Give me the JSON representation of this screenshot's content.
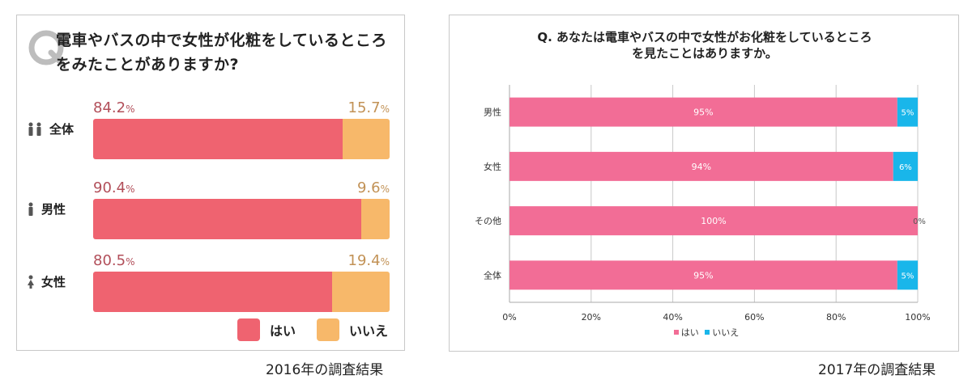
{
  "chart_data": [
    {
      "type": "bar",
      "orientation": "horizontal",
      "stacked": true,
      "title": "電車やバスの中で女性が化粧をしているところをみたことがありますか?",
      "title_mark": "Q",
      "categories": [
        "全体",
        "男性",
        "女性"
      ],
      "category_icons": [
        "people-icon",
        "male-icon",
        "female-icon"
      ],
      "series": [
        {
          "name": "はい",
          "color": "#ef6370",
          "values": [
            84.2,
            90.4,
            80.5
          ]
        },
        {
          "name": "いいえ",
          "color": "#f7b86a",
          "values": [
            15.7,
            9.6,
            19.4
          ]
        }
      ],
      "data_labels": {
        "yes": [
          "84.2",
          "90.4",
          "80.5"
        ],
        "no": [
          "15.7",
          "9.6",
          "19.4"
        ],
        "unit": "%"
      },
      "legend": [
        "はい",
        "いいえ"
      ],
      "legend_position": "bottom-right",
      "caption": "2016年の調査結果"
    },
    {
      "type": "bar",
      "orientation": "horizontal",
      "stacked": true,
      "title_line1": "Q. あなたは電車やバスの中で女性がお化粧をしているところ",
      "title_line2": "を見たことはありますか。",
      "categories": [
        "男性",
        "女性",
        "その他",
        "全体"
      ],
      "series": [
        {
          "name": "はい",
          "color": "#f26d96",
          "values": [
            95,
            94,
            100,
            95
          ]
        },
        {
          "name": "いいえ",
          "color": "#19b6ea",
          "values": [
            5,
            6,
            0,
            5
          ]
        }
      ],
      "data_labels": {
        "yes": [
          "95%",
          "94%",
          "100%",
          "95%"
        ],
        "no": [
          "5%",
          "6%",
          "0%",
          "5%"
        ]
      },
      "xlim": [
        0,
        100
      ],
      "xticks": [
        "0%",
        "20%",
        "40%",
        "60%",
        "80%",
        "100%"
      ],
      "grid": true,
      "legend": [
        "はい",
        "いいえ"
      ],
      "legend_position": "bottom",
      "caption": "2017年の調査結果"
    }
  ]
}
